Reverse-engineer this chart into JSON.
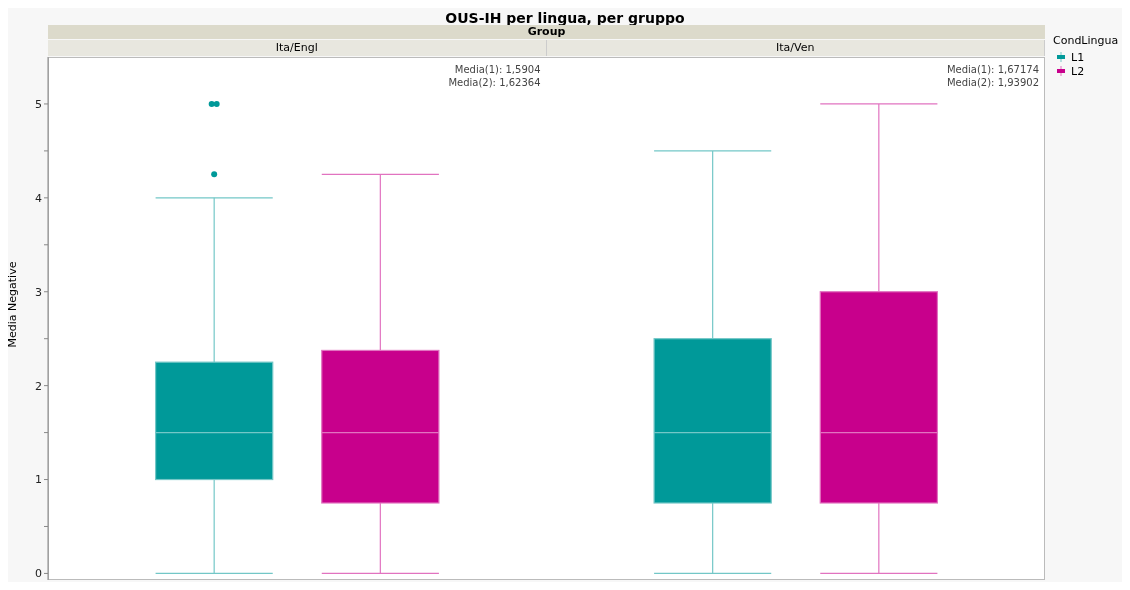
{
  "chart_data": {
    "type": "box",
    "title": "OUS-IH per lingua, per gruppo",
    "xlabel": "Group",
    "ylabel": "Media Negative",
    "legend_title": "CondLingua",
    "legend": "top right",
    "categories": [
      "Ita/Engl",
      "Ita/Ven"
    ],
    "ylim": [
      -0.07,
      5.5
    ],
    "yticks": [
      0,
      {
        "value": 0.5,
        "label": null
      },
      1,
      {
        "value": 1.5,
        "label": null
      },
      2,
      {
        "value": 2.5,
        "label": null
      },
      3,
      {
        "value": 3.5,
        "label": null
      },
      4,
      {
        "value": 4.5,
        "label": null
      },
      5
    ],
    "series": [
      {
        "name": "L1",
        "color": "#009999",
        "boxes": [
          {
            "low": 0,
            "q1": 1,
            "median": 1.5,
            "q3": 2.25,
            "high": 4,
            "outliers": [
              5,
              5,
              4.25
            ]
          },
          {
            "low": 0,
            "q1": 0.75,
            "median": 1.5,
            "q3": 2.5,
            "high": 4.5
          }
        ]
      },
      {
        "name": "L2",
        "color": "#c8008c",
        "boxes": [
          {
            "low": 0,
            "q1": 0.75,
            "median": 1.5,
            "q3": 2.375,
            "high": 4.25
          },
          {
            "low": 0,
            "q1": 0.75,
            "median": 1.5,
            "q3": 3,
            "high": 5
          }
        ]
      }
    ],
    "annotations": [
      "Media(1): 1,5904",
      "Media(2): 1,62364",
      "Media(1): 1,67174",
      "Media(2): 1,93902"
    ]
  }
}
